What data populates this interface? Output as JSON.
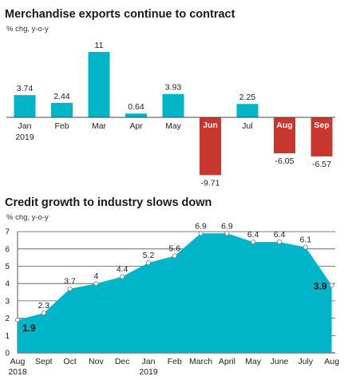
{
  "colors": {
    "positive": "#00B5C8",
    "negative": "#C8372D",
    "area": "#00B5C8"
  },
  "chart_data": [
    {
      "type": "bar",
      "title": "Merchandise exports continue to contract",
      "subtitle": "% chg, y-o-y",
      "categories": [
        "Jan",
        "Feb",
        "Mar",
        "Apr",
        "May",
        "Jun",
        "Jul",
        "Aug",
        "Sep"
      ],
      "category_sublabels": [
        "2019",
        "",
        "",
        "",
        "",
        "",
        "",
        "",
        ""
      ],
      "values": [
        3.74,
        2.44,
        11,
        0.64,
        3.93,
        -9.71,
        2.25,
        -6.05,
        -6.57
      ],
      "value_labels": [
        "3.74",
        "2.44",
        "11",
        "0.64",
        "3.93",
        "-9.71",
        "2.25",
        "-6.05",
        "-6.57"
      ],
      "ylim": [
        -10,
        11
      ]
    },
    {
      "type": "area",
      "title": "Credit growth to industry slows down",
      "subtitle": "% chg, y-o-y",
      "categories": [
        "Aug",
        "Sept",
        "Oct",
        "Nov",
        "Dec",
        "Jan",
        "Feb",
        "March",
        "April",
        "May",
        "June",
        "July",
        "Aug"
      ],
      "category_sublabels": [
        "2018",
        "",
        "",
        "",
        "",
        "2019",
        "",
        "",
        "",
        "",
        "",
        "",
        ""
      ],
      "values": [
        1.9,
        2.3,
        3.7,
        4,
        4.4,
        5.2,
        5.6,
        6.9,
        6.9,
        6.4,
        6.4,
        6.1,
        3.9
      ],
      "value_labels": [
        "1.9",
        "2.3",
        "3.7",
        "4",
        "4.4",
        "5.2",
        "5.6",
        "6.9",
        "6.9",
        "6.4",
        "6.4",
        "6.1",
        "3.9"
      ],
      "y_ticks": [
        "0",
        "1",
        "2",
        "3",
        "4",
        "5",
        "6",
        "7"
      ],
      "ylim": [
        0,
        7
      ],
      "grid": true
    }
  ]
}
